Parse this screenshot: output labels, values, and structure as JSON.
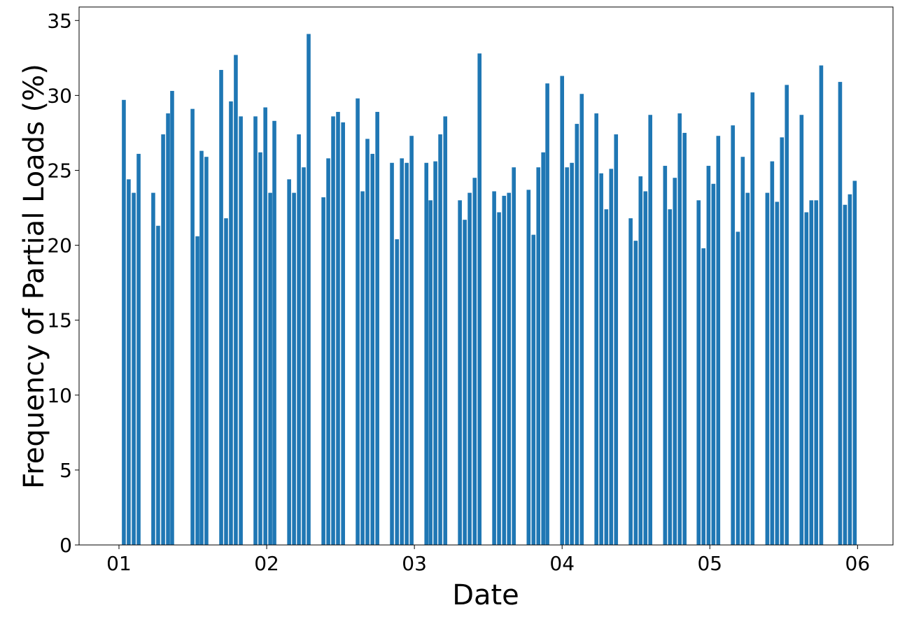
{
  "chart_data": {
    "type": "bar",
    "x_label": "Date",
    "y_label": "Frequency of Partial Loads (%)",
    "color": "#1f77b4",
    "x": [
      1.033,
      1.066,
      1.1,
      1.133,
      1.232,
      1.265,
      1.299,
      1.332,
      1.36,
      1.498,
      1.531,
      1.559,
      1.592,
      1.692,
      1.725,
      1.758,
      1.791,
      1.825,
      1.924,
      1.957,
      1.991,
      2.024,
      2.052,
      2.152,
      2.185,
      2.218,
      2.251,
      2.284,
      2.384,
      2.417,
      2.45,
      2.483,
      2.517,
      2.616,
      2.649,
      2.682,
      2.716,
      2.749,
      2.848,
      2.882,
      2.915,
      2.948,
      2.981,
      3.081,
      3.109,
      3.142,
      3.175,
      3.209,
      3.308,
      3.341,
      3.374,
      3.408,
      3.441,
      3.54,
      3.573,
      3.607,
      3.64,
      3.673,
      3.773,
      3.806,
      3.839,
      3.872,
      3.9,
      4.0,
      4.033,
      4.066,
      4.1,
      4.133,
      4.232,
      4.265,
      4.299,
      4.332,
      4.365,
      4.464,
      4.498,
      4.531,
      4.564,
      4.597,
      4.697,
      4.73,
      4.763,
      4.796,
      4.829,
      4.924,
      4.957,
      4.991,
      5.024,
      5.057,
      5.156,
      5.19,
      5.223,
      5.256,
      5.289,
      5.389,
      5.422,
      5.455,
      5.488,
      5.521,
      5.621,
      5.654,
      5.687,
      5.72,
      5.754,
      5.882,
      5.915,
      5.948,
      5.981
    ],
    "values": [
      29.7,
      24.4,
      23.5,
      26.1,
      23.5,
      21.3,
      27.4,
      28.8,
      30.3,
      29.1,
      20.6,
      26.3,
      25.9,
      31.7,
      21.8,
      29.6,
      32.7,
      28.6,
      28.6,
      26.2,
      29.2,
      23.5,
      28.3,
      24.4,
      23.5,
      27.4,
      25.2,
      34.1,
      23.2,
      25.8,
      28.6,
      28.9,
      28.2,
      29.8,
      23.6,
      27.1,
      26.1,
      28.9,
      25.5,
      20.4,
      25.8,
      25.5,
      27.3,
      25.5,
      23.0,
      25.6,
      27.4,
      28.6,
      23.0,
      21.7,
      23.5,
      24.5,
      32.8,
      23.6,
      22.2,
      23.3,
      23.5,
      25.2,
      23.7,
      20.7,
      25.2,
      26.2,
      30.8,
      31.3,
      25.2,
      25.5,
      28.1,
      30.1,
      28.8,
      24.8,
      22.4,
      25.1,
      27.4,
      21.8,
      20.3,
      24.6,
      23.6,
      28.7,
      25.3,
      22.4,
      24.5,
      28.8,
      27.5,
      23.0,
      19.8,
      25.3,
      24.1,
      27.3,
      28.0,
      20.9,
      25.9,
      23.5,
      30.2,
      23.5,
      25.6,
      22.9,
      27.2,
      30.7,
      28.7,
      22.2,
      23.0,
      23.0,
      32.0,
      30.9,
      22.7,
      23.4,
      24.3
    ],
    "xlim": [
      0.73,
      6.24
    ],
    "xticks": [
      {
        "value": 1,
        "label": "01"
      },
      {
        "value": 2,
        "label": "02"
      },
      {
        "value": 3,
        "label": "03"
      },
      {
        "value": 4,
        "label": "04"
      },
      {
        "value": 5,
        "label": "05"
      },
      {
        "value": 6,
        "label": "06"
      }
    ],
    "ylim": [
      0,
      35.9
    ],
    "yticks": [
      0,
      5,
      10,
      15,
      20,
      25,
      30,
      35
    ]
  }
}
